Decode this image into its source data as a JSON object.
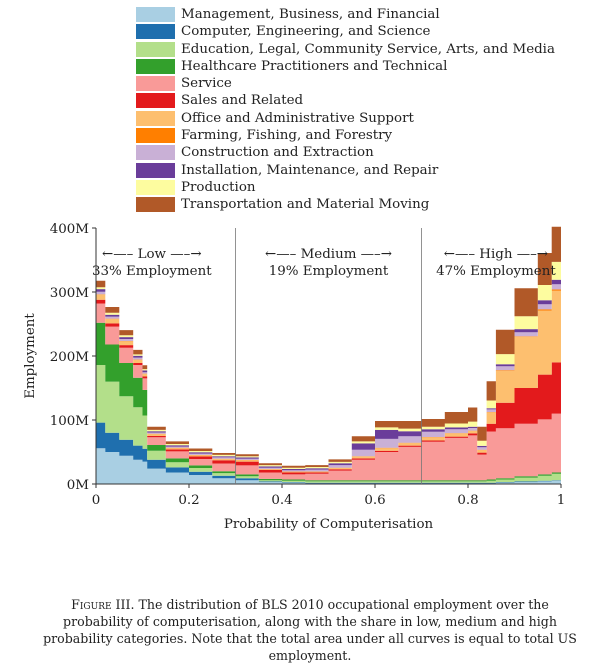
{
  "chart_data": {
    "type": "area",
    "stacked": true,
    "xlabel": "Probability of Computerisation",
    "ylabel": "Employment",
    "xlim": [
      0,
      1
    ],
    "ylim": [
      0,
      400000000
    ],
    "x_ticks": [
      0,
      0.2,
      0.4,
      0.6,
      0.8,
      1
    ],
    "x_tick_labels": [
      "0",
      "0.2",
      "0.4",
      "0.6",
      "0.8",
      "1"
    ],
    "y_ticks": [
      0,
      100000000,
      200000000,
      300000000,
      400000000
    ],
    "y_tick_labels": [
      "0M",
      "100M",
      "200M",
      "300M",
      "400M"
    ],
    "thresholds": [
      0.3,
      0.7
    ],
    "regions": [
      {
        "arrow": "←—– Low —–→",
        "share": "33% Employment",
        "center": 0.12
      },
      {
        "arrow": "←—– Medium —–→",
        "share": "19% Employment",
        "center": 0.5
      },
      {
        "arrow": "←—– High —–→",
        "share": "47% Employment",
        "center": 0.86
      }
    ],
    "x": [
      0,
      0.02,
      0.05,
      0.08,
      0.1,
      0.11,
      0.15,
      0.2,
      0.25,
      0.3,
      0.35,
      0.4,
      0.45,
      0.5,
      0.55,
      0.6,
      0.65,
      0.7,
      0.75,
      0.8,
      0.82,
      0.84,
      0.86,
      0.9,
      0.95,
      0.98,
      1.0
    ],
    "legend_position": "top",
    "series": [
      {
        "name": "Management, Business, and Financial",
        "color": "#a9cfe3",
        "values": [
          56,
          50,
          44,
          38,
          35,
          24,
          18,
          14,
          9,
          6,
          3,
          2,
          1,
          1,
          1,
          1,
          1,
          1,
          1,
          1,
          1,
          1,
          2,
          3,
          4,
          5,
          6
        ]
      },
      {
        "name": "Computer, Engineering, and Science",
        "color": "#1f6fae",
        "values": [
          40,
          30,
          25,
          22,
          20,
          14,
          8,
          5,
          4,
          3,
          1,
          1,
          1,
          1,
          1,
          1,
          1,
          1,
          1,
          1,
          1,
          1,
          1,
          1,
          1,
          1,
          1
        ]
      },
      {
        "name": "Education, Legal, Community Service, Arts, and Media",
        "color": "#b3df8a",
        "values": [
          90,
          80,
          68,
          60,
          52,
          14,
          8,
          6,
          4,
          3,
          2,
          2,
          2,
          2,
          2,
          2,
          2,
          2,
          2,
          2,
          2,
          3,
          4,
          6,
          8,
          10,
          12
        ]
      },
      {
        "name": "Healthcare Practitioners and Technical",
        "color": "#33a02c",
        "values": [
          66,
          58,
          52,
          46,
          40,
          9,
          6,
          4,
          3,
          3,
          2,
          2,
          2,
          2,
          2,
          2,
          2,
          2,
          2,
          2,
          2,
          2,
          2,
          2,
          2,
          2,
          2
        ]
      },
      {
        "name": "Service",
        "color": "#f99a98",
        "values": [
          30,
          28,
          24,
          20,
          18,
          12,
          11,
          10,
          12,
          14,
          10,
          8,
          10,
          15,
          32,
          44,
          52,
          60,
          66,
          70,
          40,
          75,
          78,
          82,
          86,
          92,
          95
        ]
      },
      {
        "name": "Sales and Related",
        "color": "#e31a1c",
        "values": [
          6,
          5,
          4,
          3,
          3,
          2,
          3,
          4,
          5,
          6,
          4,
          3,
          2,
          2,
          2,
          2,
          2,
          2,
          2,
          3,
          3,
          12,
          40,
          56,
          70,
          80,
          88
        ]
      },
      {
        "name": "Office and Administrative Support",
        "color": "#fdbf6f",
        "values": [
          8,
          7,
          6,
          5,
          4,
          3,
          2,
          2,
          2,
          2,
          1,
          1,
          1,
          2,
          3,
          4,
          4,
          5,
          5,
          4,
          4,
          18,
          50,
          80,
          100,
          112,
          134
        ]
      },
      {
        "name": "Farming, Fishing, and Forestry",
        "color": "#ff7f00",
        "values": [
          0.5,
          0.5,
          0.5,
          0.5,
          0.5,
          0.5,
          0.5,
          0.5,
          0.5,
          0.5,
          0.5,
          0.5,
          0.5,
          0.5,
          0.5,
          0.5,
          0.5,
          0.5,
          0.5,
          0.5,
          0.5,
          0.5,
          1,
          1,
          2,
          2,
          2
        ]
      },
      {
        "name": "Construction and Extraction",
        "color": "#c9b0d6",
        "values": [
          4,
          3,
          3,
          3,
          2,
          2,
          2,
          2,
          2,
          2,
          2,
          2,
          3,
          4,
          10,
          14,
          10,
          8,
          6,
          4,
          4,
          4,
          6,
          6,
          8,
          8,
          9
        ]
      },
      {
        "name": "Installation, Maintenance, and Repair",
        "color": "#6a3d9a",
        "values": [
          4,
          3,
          3,
          3,
          3,
          2,
          2,
          2,
          2,
          2,
          2,
          2,
          2,
          3,
          10,
          14,
          8,
          4,
          3,
          2,
          2,
          2,
          3,
          5,
          6,
          7,
          8
        ]
      },
      {
        "name": "Production",
        "color": "#fdfc9f",
        "values": [
          3,
          3,
          3,
          2,
          2,
          2,
          2,
          2,
          2,
          2,
          2,
          2,
          2,
          2,
          3,
          4,
          4,
          4,
          6,
          8,
          8,
          12,
          16,
          20,
          24,
          28,
          30
        ]
      },
      {
        "name": "Transportation and Material Moving",
        "color": "#b15928",
        "values": [
          10,
          9,
          8,
          7,
          6,
          5,
          4,
          4,
          3,
          3,
          3,
          3,
          3,
          4,
          8,
          10,
          12,
          12,
          18,
          22,
          22,
          30,
          38,
          44,
          50,
          55,
          60
        ]
      }
    ]
  },
  "caption": {
    "figure_label": "Figure III.",
    "text_part1": " The distribution of ",
    "bls": "BLS",
    "text_part2": " 2010 occupational employment over the probability of computerisation, along with the share in low, medium and high probability categories. Note that the total area under all curves is equal to total ",
    "us": "US",
    "text_part3": " employment."
  }
}
